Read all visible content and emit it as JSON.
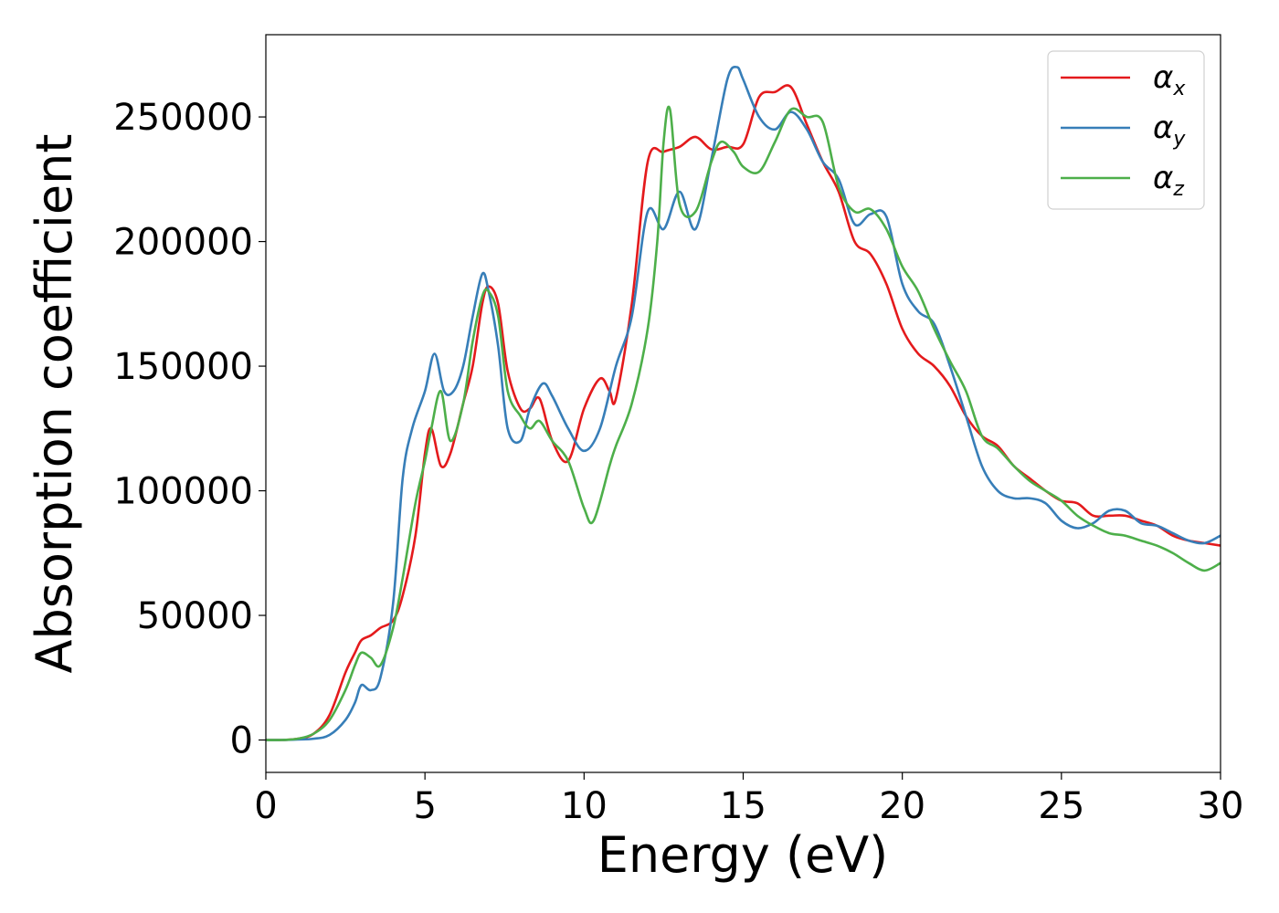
{
  "chart_data": {
    "type": "line",
    "title": "",
    "xlabel": "Energy (eV)",
    "ylabel": "Absorption coefficient",
    "xlim": [
      0,
      30
    ],
    "ylim": [
      -13000,
      283000
    ],
    "xticks": [
      0,
      5,
      10,
      15,
      20,
      25,
      30
    ],
    "xtick_labels": [
      "0",
      "5",
      "10",
      "15",
      "20",
      "25",
      "30"
    ],
    "yticks": [
      0,
      50000,
      100000,
      150000,
      200000,
      250000
    ],
    "ytick_labels": [
      "0",
      "50000",
      "100000",
      "150000",
      "200000",
      "250000"
    ],
    "grid": false,
    "legend_position": "top-right",
    "series": [
      {
        "name": "αx",
        "symbol": "α",
        "subscript": "x",
        "color": "#e41a1c",
        "x": [
          0,
          0.5,
          1,
          1.5,
          2,
          2.5,
          2.8,
          3,
          3.3,
          3.6,
          4,
          4.3,
          4.7,
          5,
          5.2,
          5.5,
          5.8,
          6.2,
          6.5,
          6.8,
          7,
          7.3,
          7.6,
          8,
          8.3,
          8.6,
          9,
          9.5,
          10,
          10.5,
          10.8,
          11,
          11.5,
          12,
          12.5,
          13,
          13.5,
          14,
          14.5,
          15,
          15.5,
          16,
          16.5,
          17,
          17.5,
          18,
          18.5,
          19,
          19.5,
          20,
          20.5,
          21,
          21.5,
          22,
          22.5,
          23,
          23.5,
          24,
          24.5,
          25,
          25.5,
          26,
          26.5,
          27,
          27.5,
          28,
          28.5,
          29,
          29.5,
          30
        ],
        "y": [
          0,
          0,
          500,
          2500,
          10000,
          27000,
          35000,
          40000,
          42000,
          45000,
          48000,
          58000,
          82000,
          115000,
          125000,
          110000,
          115000,
          135000,
          150000,
          175000,
          182000,
          175000,
          148000,
          133000,
          133000,
          137000,
          120000,
          112000,
          133000,
          145000,
          140000,
          137000,
          175000,
          232000,
          236000,
          238000,
          242000,
          237000,
          238000,
          239000,
          258000,
          260000,
          262000,
          247000,
          232000,
          220000,
          200000,
          195000,
          183000,
          165000,
          155000,
          150000,
          142000,
          130000,
          122000,
          118000,
          110000,
          105000,
          100000,
          96000,
          95000,
          90000,
          90000,
          90000,
          88000,
          86000,
          82000,
          80000,
          79000,
          78000
        ]
      },
      {
        "name": "αy",
        "symbol": "α",
        "subscript": "y",
        "color": "#377eb8",
        "x": [
          0,
          0.5,
          1,
          1.5,
          2,
          2.5,
          2.8,
          3,
          3.3,
          3.6,
          4,
          4.3,
          4.6,
          5,
          5.3,
          5.6,
          5.9,
          6.2,
          6.5,
          6.8,
          7,
          7.3,
          7.6,
          8,
          8.3,
          8.7,
          9,
          9.5,
          10,
          10.5,
          11,
          11.5,
          12,
          12.5,
          13,
          13.5,
          14,
          14.5,
          14.8,
          15,
          15.5,
          16,
          16.5,
          17,
          17.5,
          18,
          18.5,
          19,
          19.5,
          20,
          20.5,
          21,
          21.5,
          22,
          22.5,
          23,
          23.5,
          24,
          24.5,
          25,
          25.5,
          26,
          26.5,
          27,
          27.5,
          28,
          28.5,
          29,
          29.5,
          30
        ],
        "y": [
          0,
          0,
          200,
          500,
          2000,
          8000,
          15000,
          22000,
          20000,
          25000,
          55000,
          105000,
          125000,
          140000,
          155000,
          140000,
          140000,
          150000,
          170000,
          187000,
          180000,
          158000,
          125000,
          120000,
          133000,
          143000,
          138000,
          125000,
          116000,
          125000,
          150000,
          170000,
          212000,
          205000,
          220000,
          205000,
          233000,
          265000,
          270000,
          265000,
          250000,
          245000,
          252000,
          245000,
          232000,
          225000,
          207000,
          211000,
          210000,
          183000,
          172000,
          167000,
          150000,
          130000,
          110000,
          100000,
          97000,
          97000,
          95000,
          88000,
          85000,
          87000,
          92000,
          92000,
          87000,
          86000,
          83000,
          80000,
          79000,
          82000
        ]
      },
      {
        "name": "αz",
        "symbol": "α",
        "subscript": "z",
        "color": "#4daf4a",
        "x": [
          0,
          0.5,
          1,
          1.5,
          2,
          2.5,
          2.8,
          3,
          3.3,
          3.6,
          4,
          4.3,
          4.7,
          5,
          5.2,
          5.5,
          5.8,
          6.2,
          6.5,
          6.8,
          7,
          7.3,
          7.6,
          8,
          8.3,
          8.6,
          9,
          9.5,
          10,
          10.3,
          10.8,
          11,
          11.5,
          12,
          12.3,
          12.5,
          12.7,
          13,
          13.5,
          14,
          14.3,
          14.7,
          15,
          15.5,
          16,
          16.5,
          17,
          17.5,
          18,
          18.5,
          19,
          19.5,
          20,
          20.5,
          21,
          21.5,
          22,
          22.5,
          23,
          23.5,
          24,
          24.5,
          25,
          25.5,
          26,
          26.5,
          27,
          27.5,
          28,
          28.5,
          29,
          29.5,
          30
        ],
        "y": [
          0,
          0,
          500,
          2500,
          8000,
          20000,
          30000,
          35000,
          33000,
          30000,
          45000,
          65000,
          95000,
          112000,
          125000,
          140000,
          120000,
          135000,
          160000,
          178000,
          180000,
          170000,
          140000,
          130000,
          125000,
          128000,
          120000,
          112000,
          93000,
          88000,
          110000,
          118000,
          135000,
          165000,
          200000,
          240000,
          253000,
          215000,
          212000,
          232000,
          240000,
          236000,
          230000,
          228000,
          240000,
          253000,
          250000,
          248000,
          222000,
          212000,
          213000,
          205000,
          190000,
          180000,
          165000,
          152000,
          140000,
          122000,
          117000,
          110000,
          104000,
          100000,
          96000,
          90000,
          86000,
          83000,
          82000,
          80000,
          78000,
          75000,
          71000,
          68000,
          71000
        ]
      }
    ]
  }
}
